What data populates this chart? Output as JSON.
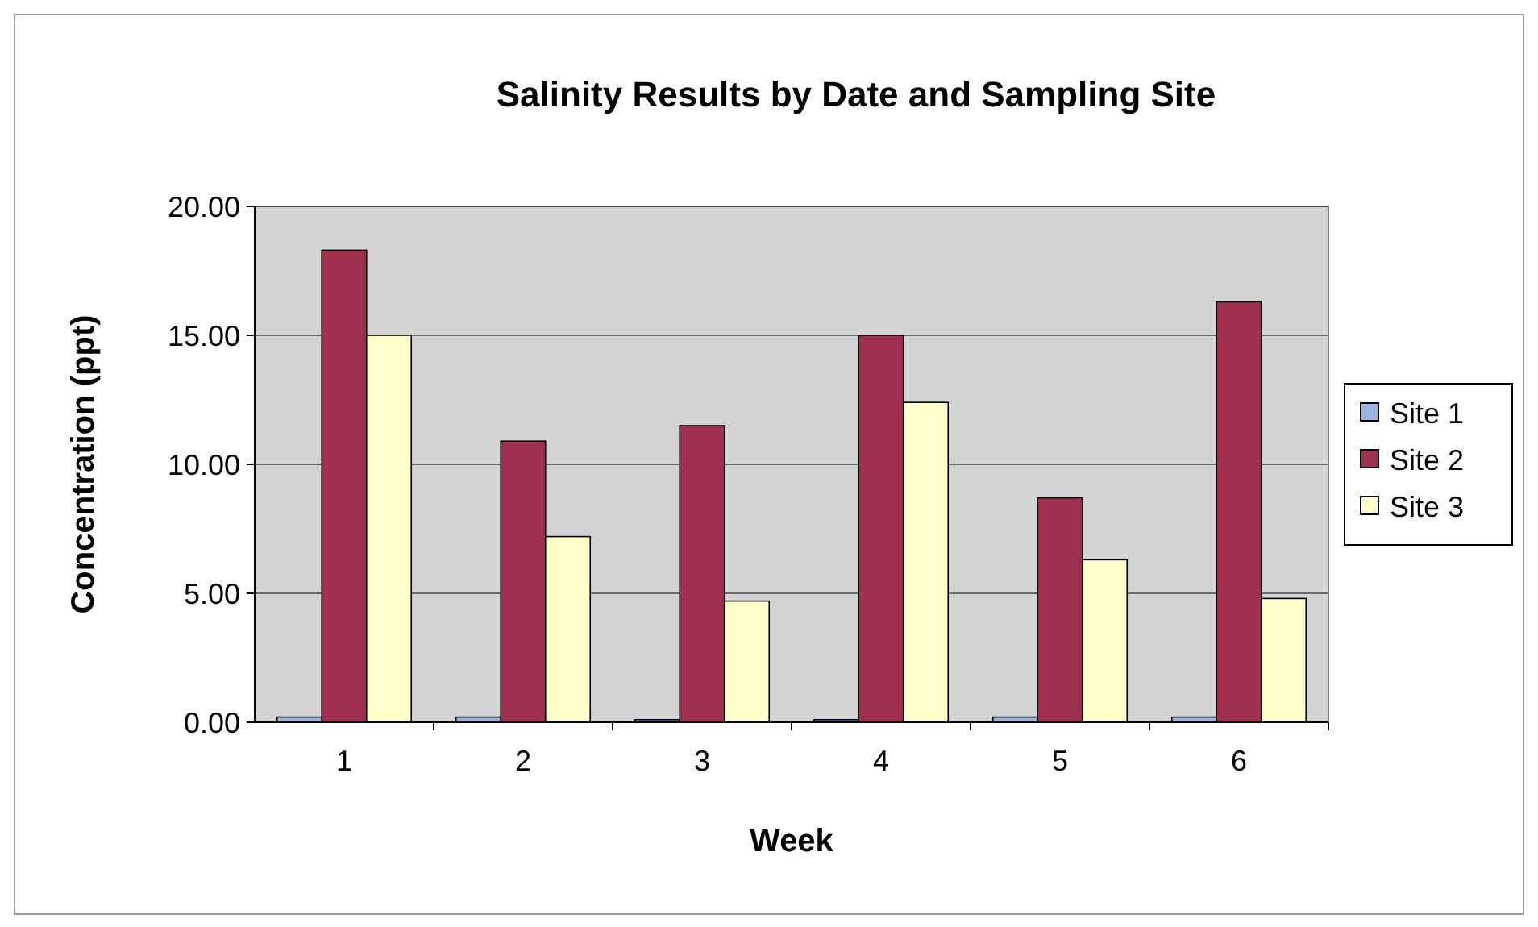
{
  "chart_data": {
    "type": "bar",
    "title": "Salinity Results by Date and Sampling Site",
    "xlabel": "Week",
    "ylabel": "Concentration (ppt)",
    "categories": [
      "1",
      "2",
      "3",
      "4",
      "5",
      "6"
    ],
    "series": [
      {
        "name": "Site 1",
        "color": "#9db4e0",
        "values": [
          0.2,
          0.2,
          0.1,
          0.1,
          0.2,
          0.2
        ]
      },
      {
        "name": "Site 2",
        "color": "#a0304f",
        "values": [
          18.3,
          10.9,
          11.5,
          15.0,
          8.7,
          16.3
        ]
      },
      {
        "name": "Site 3",
        "color": "#ffffcc",
        "values": [
          15.0,
          7.2,
          4.7,
          12.4,
          6.3,
          4.8
        ]
      }
    ],
    "ylim": [
      0,
      20
    ],
    "yticks": [
      {
        "value": 0,
        "label": "0.00"
      },
      {
        "value": 5,
        "label": "5.00"
      },
      {
        "value": 10,
        "label": "10.00"
      },
      {
        "value": 15,
        "label": "15.00"
      },
      {
        "value": 20,
        "label": "20.00"
      }
    ],
    "grid": "y",
    "legend": "right"
  }
}
